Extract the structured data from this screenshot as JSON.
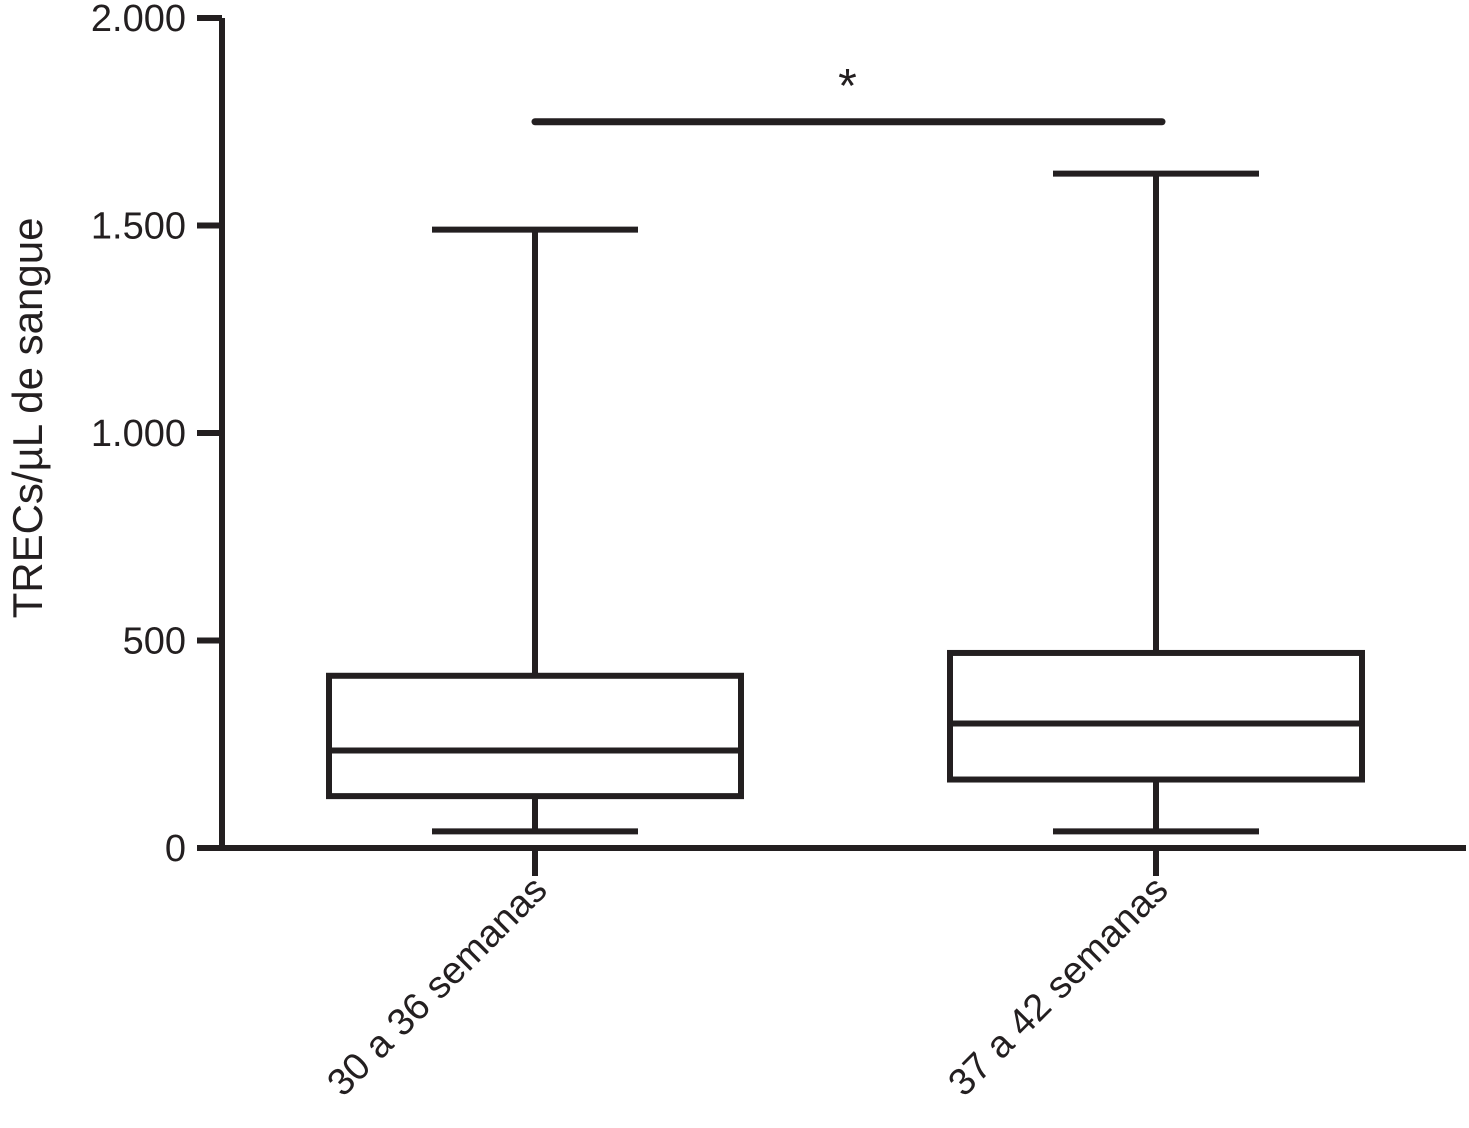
{
  "chart_data": {
    "type": "box",
    "ylabel": "TRECs/µL de sangue",
    "ylim": [
      0,
      2000
    ],
    "yticks": [
      0,
      500,
      1000,
      1500,
      2000
    ],
    "ytick_labels": [
      "0",
      "500",
      "1.000",
      "1.500",
      "2.000"
    ],
    "categories": [
      "30 a 36 semanas",
      "37 a 42 semanas"
    ],
    "boxes": [
      {
        "category": "30 a 36 semanas",
        "whisker_low": 40,
        "q1": 125,
        "median": 235,
        "q3": 415,
        "whisker_high": 1490
      },
      {
        "category": "37 a 42 semanas",
        "whisker_low": 40,
        "q1": 165,
        "median": 300,
        "q3": 470,
        "whisker_high": 1625
      }
    ],
    "significance": {
      "label": "*",
      "between": [
        "30 a 36 semanas",
        "37 a 42 semanas"
      ],
      "y": 1750
    },
    "color": "#231f20"
  }
}
